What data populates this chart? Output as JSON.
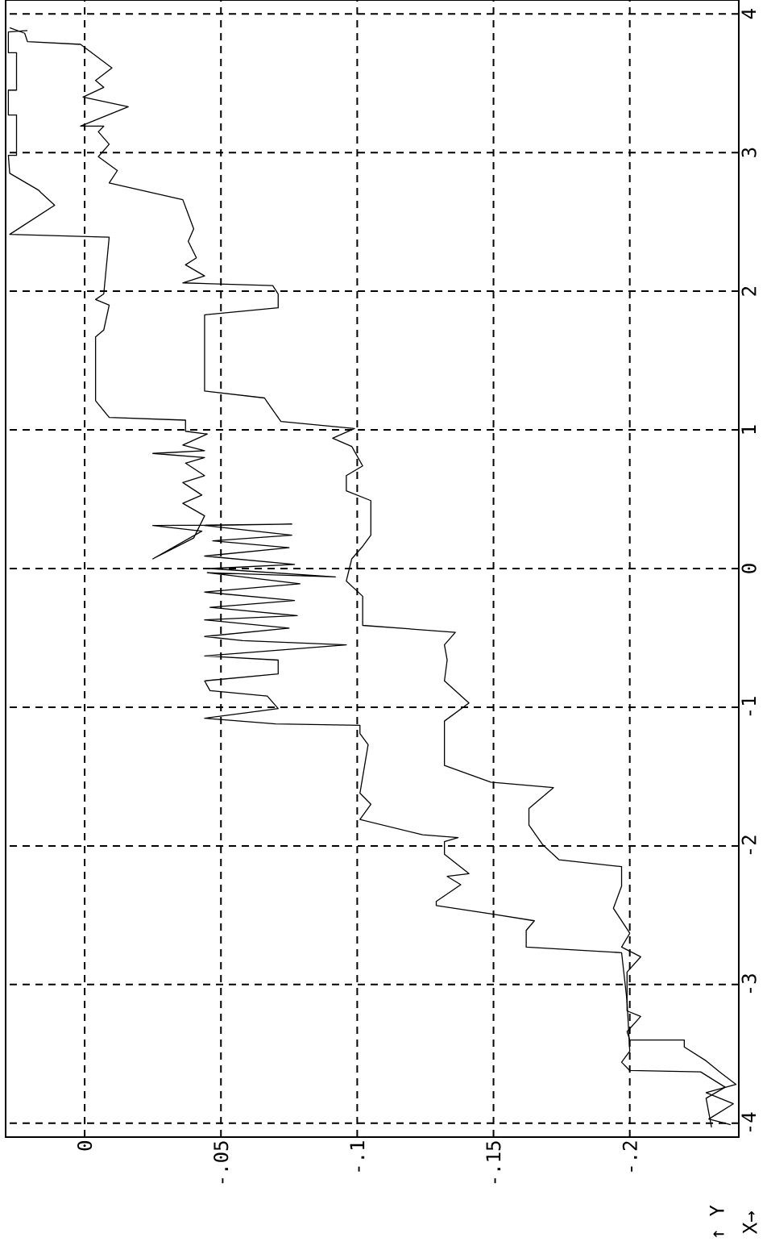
{
  "chart_data": {
    "type": "line",
    "annotations": [
      "↑ Y",
      "X→"
    ],
    "ylim": [
      -4.1,
      4.1
    ],
    "xlim": [
      0.029,
      -0.24
    ],
    "yticks": [
      -4,
      -3,
      -2,
      -1,
      0,
      1,
      2,
      3,
      4
    ],
    "xticks": [
      {
        "value": 0,
        "label": "0"
      },
      {
        "value": -0.05,
        "label": "-.05"
      },
      {
        "value": -0.1,
        "label": "-.1"
      },
      {
        "value": -0.15,
        "label": "-.15"
      },
      {
        "value": -0.2,
        "label": "-.2"
      }
    ],
    "grid": true,
    "series": [
      {
        "color": "#000000",
        "values": [
          -4.03,
          -3.82,
          -3.74,
          -3.63,
          -3.62,
          -3.56,
          -3.48,
          -3.12,
          -2.77,
          -2.73,
          -2.61,
          -2.54,
          -2.49,
          -2.43,
          -2.4,
          -2.28,
          -2.22,
          -2.2,
          -2.06,
          -1.97,
          -1.94,
          -1.92,
          -1.81,
          -1.7,
          -1.62,
          -1.27,
          -1.19,
          -1.13,
          -1.12,
          -1.08,
          -1.01,
          -0.92,
          -0.88,
          -0.81,
          -0.76,
          -0.66,
          -0.63,
          -0.55,
          -0.52,
          -0.49,
          -0.43,
          -0.37,
          -0.34,
          -0.28,
          -0.23,
          -0.17,
          -0.11,
          -0.03,
          -0.06,
          0,
          0.03,
          0.09,
          0.15,
          0.2,
          0.24,
          0.31,
          0.32,
          0.31,
          0.27,
          0.07,
          0.22,
          0.38,
          0.47,
          0.53,
          0.62,
          0.67,
          0.76,
          0.8,
          0.83,
          0.85,
          0.89,
          0.97,
          0.99,
          1.07,
          1.09,
          1.21,
          1.67,
          1.72,
          1.9,
          1.94,
          1.98,
          2.39,
          2.41,
          2.62,
          2.71,
          2.73,
          2.85,
          2.98,
          2.98,
          3.27,
          3.27,
          3.45,
          3.45,
          3.72,
          3.72,
          3.87,
          3.88
        ],
        "x": [
          -0.23,
          -0.228,
          -0.235,
          -0.226,
          -0.2,
          -0.197,
          -0.2,
          -0.199,
          -0.197,
          -0.162,
          -0.162,
          -0.165,
          -0.149,
          -0.129,
          -0.129,
          -0.138,
          -0.133,
          -0.141,
          -0.132,
          -0.132,
          -0.137,
          -0.124,
          -0.101,
          -0.105,
          -0.101,
          -0.104,
          -0.101,
          -0.101,
          -0.07,
          -0.044,
          -0.071,
          -0.067,
          -0.046,
          -0.044,
          -0.071,
          -0.071,
          -0.044,
          -0.096,
          -0.058,
          -0.044,
          -0.075,
          -0.044,
          -0.078,
          -0.046,
          -0.077,
          -0.044,
          -0.079,
          -0.045,
          -0.092,
          -0.046,
          -0.077,
          -0.044,
          -0.075,
          -0.047,
          -0.076,
          -0.044,
          -0.076,
          -0.025,
          -0.043,
          -0.025,
          -0.04,
          -0.044,
          -0.036,
          -0.043,
          -0.036,
          -0.044,
          -0.037,
          -0.044,
          -0.025,
          -0.044,
          -0.036,
          -0.045,
          -0.037,
          -0.037,
          -0.009,
          -0.004,
          -0.004,
          -0.007,
          -0.009,
          -0.004,
          -0.007,
          -0.009,
          0.0275,
          0.011,
          0.016,
          0.017,
          0.0275,
          0.028,
          0.025,
          0.025,
          0.028,
          0.028,
          0.025,
          0.025,
          0.028,
          0.028,
          0.021
        ]
      },
      {
        "color": "#000000",
        "values": [
          -4.01,
          -3.97,
          -3.86,
          -3.78,
          -3.72,
          -3.63,
          -3.55,
          -3.45,
          -3.4,
          -3.4,
          -3.34,
          -3.23,
          -3.19,
          -2.91,
          -2.8,
          -2.73,
          -2.63,
          -2.45,
          -2.29,
          -2.15,
          -2.1,
          -1.99,
          -1.85,
          -1.73,
          -1.58,
          -1.54,
          -1.42,
          -1.1,
          -0.97,
          -0.81,
          -0.66,
          -0.55,
          -0.46,
          -0.41,
          -0.2,
          -0.09,
          0.07,
          0.16,
          0.24,
          0.49,
          0.56,
          0.67,
          0.74,
          0.88,
          0.94,
          1.01,
          1.06,
          1.2,
          1.23,
          1.28,
          1.83,
          1.88,
          1.98,
          2.04,
          2.06,
          2.11,
          2.19,
          2.24,
          2.36,
          2.45,
          2.66,
          2.78,
          2.87,
          2.97,
          3.06,
          3.15,
          3.19,
          3.19,
          3.33,
          3.4,
          3.47,
          3.52,
          3.61,
          3.78,
          3.8,
          3.86,
          3.9
        ],
        "x": [
          -0.237,
          -0.229,
          -0.238,
          -0.228,
          -0.239,
          -0.233,
          -0.228,
          -0.22,
          -0.22,
          -0.2,
          -0.199,
          -0.204,
          -0.199,
          -0.199,
          -0.204,
          -0.197,
          -0.2,
          -0.194,
          -0.197,
          -0.197,
          -0.174,
          -0.168,
          -0.163,
          -0.163,
          -0.172,
          -0.149,
          -0.132,
          -0.132,
          -0.141,
          -0.132,
          -0.133,
          -0.132,
          -0.136,
          -0.102,
          -0.102,
          -0.096,
          -0.098,
          -0.102,
          -0.105,
          -0.105,
          -0.096,
          -0.096,
          -0.102,
          -0.098,
          -0.091,
          -0.099,
          -0.072,
          -0.067,
          -0.066,
          -0.044,
          -0.044,
          -0.071,
          -0.071,
          -0.069,
          -0.036,
          -0.044,
          -0.037,
          -0.041,
          -0.038,
          -0.04,
          -0.036,
          -0.009,
          -0.012,
          -0.005,
          -0.009,
          -0.005,
          -0.007,
          0.0015,
          -0.016,
          0.0006,
          -0.007,
          -0.004,
          -0.01,
          0.0015,
          0.021,
          0.022,
          0.0275
        ]
      }
    ]
  }
}
